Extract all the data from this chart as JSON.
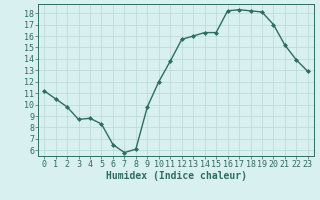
{
  "xlabel": "Humidex (Indice chaleur)",
  "x": [
    0,
    1,
    2,
    3,
    4,
    5,
    6,
    7,
    8,
    9,
    10,
    11,
    12,
    13,
    14,
    15,
    16,
    17,
    18,
    19,
    20,
    21,
    22,
    23
  ],
  "y": [
    11.2,
    10.5,
    9.8,
    8.7,
    8.8,
    8.3,
    6.5,
    5.8,
    6.1,
    9.8,
    12.0,
    13.8,
    15.7,
    16.0,
    16.3,
    16.3,
    18.2,
    18.3,
    18.2,
    18.1,
    17.0,
    15.2,
    13.9,
    12.9
  ],
  "xlim": [
    -0.5,
    23.5
  ],
  "ylim": [
    5.5,
    18.8
  ],
  "yticks": [
    6,
    7,
    8,
    9,
    10,
    11,
    12,
    13,
    14,
    15,
    16,
    17,
    18
  ],
  "xticks": [
    0,
    1,
    2,
    3,
    4,
    5,
    6,
    7,
    8,
    9,
    10,
    11,
    12,
    13,
    14,
    15,
    16,
    17,
    18,
    19,
    20,
    21,
    22,
    23
  ],
  "line_color": "#2e6e5e",
  "marker": "D",
  "marker_size": 2,
  "bg_color": "#d8f0f0",
  "grid_color": "#b8d8d8",
  "xlabel_fontsize": 7,
  "tick_fontsize": 6,
  "line_width": 1.0
}
